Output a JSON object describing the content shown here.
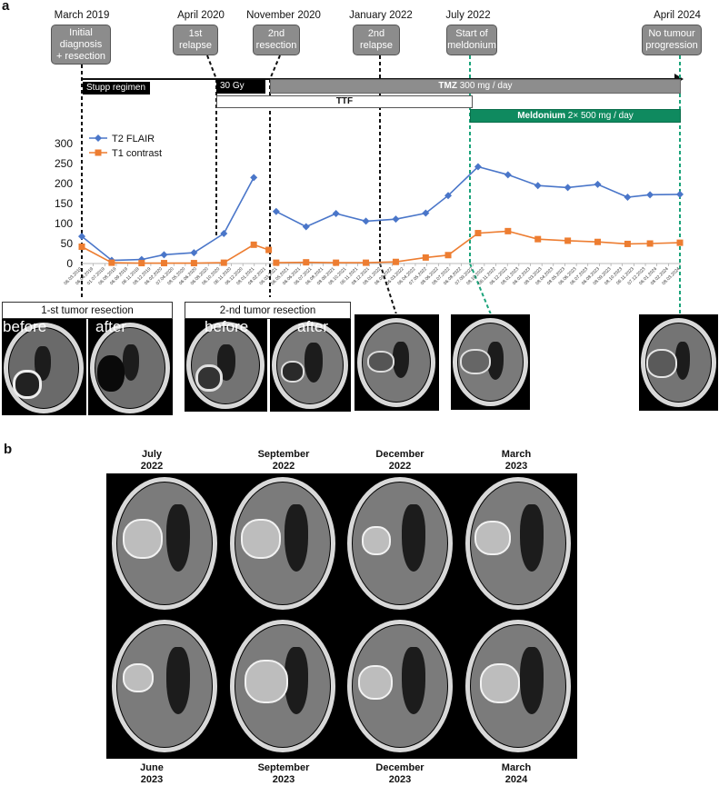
{
  "panel_a_letter": "a",
  "panel_b_letter": "b",
  "timeline": {
    "events": [
      {
        "date": "March 2019",
        "box": "Initial\ndiagnosis\n+ resection"
      },
      {
        "date": "April 2020",
        "box": "1st\nrelapse"
      },
      {
        "date": "November 2020",
        "box": "2nd\nresection"
      },
      {
        "date": "January 2022",
        "box": "2nd\nrelapse"
      },
      {
        "date": "July 2022",
        "box": "Start of\nmeldonium"
      },
      {
        "date": "April 2024",
        "box": "No tumour\nprogression"
      }
    ],
    "treatments": {
      "stupp": "Stupp regimen",
      "radio": "30 Gy",
      "tmz_bold": "TMZ",
      "tmz_rest": " 300 mg / day",
      "ttf": "TTF",
      "meld_bold": "Meldonium",
      "meld_rest": " 2× 500 mg / day"
    },
    "colors": {
      "event_box": "#8c8c8c",
      "meldonium": "#0f8a5f",
      "green_dash": "#1aa37a"
    }
  },
  "chart_data": {
    "type": "line",
    "ylim": [
      0,
      300
    ],
    "yticks": [
      0,
      50,
      100,
      150,
      200,
      250,
      300
    ],
    "x": [
      "06.03.2019",
      "06.04.2019",
      "01.07.2019",
      "06.08.2019",
      "06.09.2019",
      "06.11.2019",
      "08.12.2019",
      "06.02.2020",
      "07.04.2020",
      "08.05.2020",
      "06.06.2020",
      "06.08.2020",
      "06.10.2020",
      "06.11.2020",
      "06.12.2020",
      "08.01.2021",
      "08.02.2021",
      "06.03.2021",
      "06.05.2021",
      "06.06.2021",
      "06.07.2021",
      "06.08.2021",
      "08.09.2021",
      "08.10.2021",
      "06.11.2021",
      "08.12.2021",
      "08.01.2022",
      "06.02.2022",
      "06.03.2022",
      "06.04.2022",
      "07.05.2022",
      "08.06.2022",
      "08.07.2022",
      "06.08.2022",
      "07.09.2022",
      "08.10.2022",
      "06.11.2022",
      "06.12.2022",
      "08.01.2023",
      "06.02.2023",
      "08.03.2023",
      "08.04.2023",
      "08.05.2023",
      "06.06.2023",
      "06.07.2023",
      "06.08.2023",
      "08.09.2023",
      "08.10.2023",
      "06.11.2023",
      "07.12.2023",
      "06.01.2024",
      "08.02.2024",
      "08.03.2024"
    ],
    "series": [
      {
        "name": "T2 FLAIR",
        "color": "#4a76c9",
        "segments": [
          [
            {
              "x": 0,
              "y": 68
            },
            {
              "x": 4,
              "y": 8
            },
            {
              "x": 8,
              "y": 10
            },
            {
              "x": 11,
              "y": 22
            },
            {
              "x": 15,
              "y": 27
            },
            {
              "x": 19,
              "y": 75
            },
            {
              "x": 23,
              "y": 215
            }
          ],
          [
            {
              "x": 26,
              "y": 130
            },
            {
              "x": 30,
              "y": 92
            },
            {
              "x": 34,
              "y": 125
            },
            {
              "x": 38,
              "y": 106
            },
            {
              "x": 42,
              "y": 111
            },
            {
              "x": 46,
              "y": 126
            },
            {
              "x": 49,
              "y": 170
            },
            {
              "x": 53,
              "y": 242
            },
            {
              "x": 57,
              "y": 222
            },
            {
              "x": 61,
              "y": 195
            },
            {
              "x": 65,
              "y": 190
            },
            {
              "x": 69,
              "y": 198
            },
            {
              "x": 73,
              "y": 166
            },
            {
              "x": 76,
              "y": 172
            },
            {
              "x": 80,
              "y": 173
            }
          ]
        ]
      },
      {
        "name": "T1 contrast",
        "color": "#ed7d31",
        "segments": [
          [
            {
              "x": 0,
              "y": 42
            },
            {
              "x": 4,
              "y": 2
            },
            {
              "x": 8,
              "y": 1
            },
            {
              "x": 11,
              "y": 1
            },
            {
              "x": 15,
              "y": 1
            },
            {
              "x": 19,
              "y": 2
            },
            {
              "x": 23,
              "y": 47
            },
            {
              "x": 25,
              "y": 34
            }
          ],
          [
            {
              "x": 26,
              "y": 2
            },
            {
              "x": 30,
              "y": 3
            },
            {
              "x": 34,
              "y": 2
            },
            {
              "x": 38,
              "y": 2
            },
            {
              "x": 42,
              "y": 4
            },
            {
              "x": 46,
              "y": 15
            },
            {
              "x": 49,
              "y": 21
            },
            {
              "x": 53,
              "y": 76
            },
            {
              "x": 57,
              "y": 81
            },
            {
              "x": 61,
              "y": 61
            },
            {
              "x": 65,
              "y": 57
            },
            {
              "x": 69,
              "y": 54
            },
            {
              "x": 73,
              "y": 49
            },
            {
              "x": 76,
              "y": 50
            },
            {
              "x": 80,
              "y": 52
            }
          ]
        ]
      }
    ],
    "x_domain": [
      0,
      80
    ]
  },
  "resections": {
    "first_title": "1-st tumor resection",
    "second_title": "2-nd tumor resection",
    "before": "before",
    "after": "after"
  },
  "grid": {
    "top": [
      {
        "line1": "July",
        "line2": "2022"
      },
      {
        "line1": "September",
        "line2": "2022"
      },
      {
        "line1": "December",
        "line2": "2022"
      },
      {
        "line1": "March",
        "line2": "2023"
      }
    ],
    "bottom": [
      {
        "line1": "June",
        "line2": "2023"
      },
      {
        "line1": "September",
        "line2": "2023"
      },
      {
        "line1": "December",
        "line2": "2023"
      },
      {
        "line1": "March",
        "line2": "2024"
      }
    ]
  }
}
